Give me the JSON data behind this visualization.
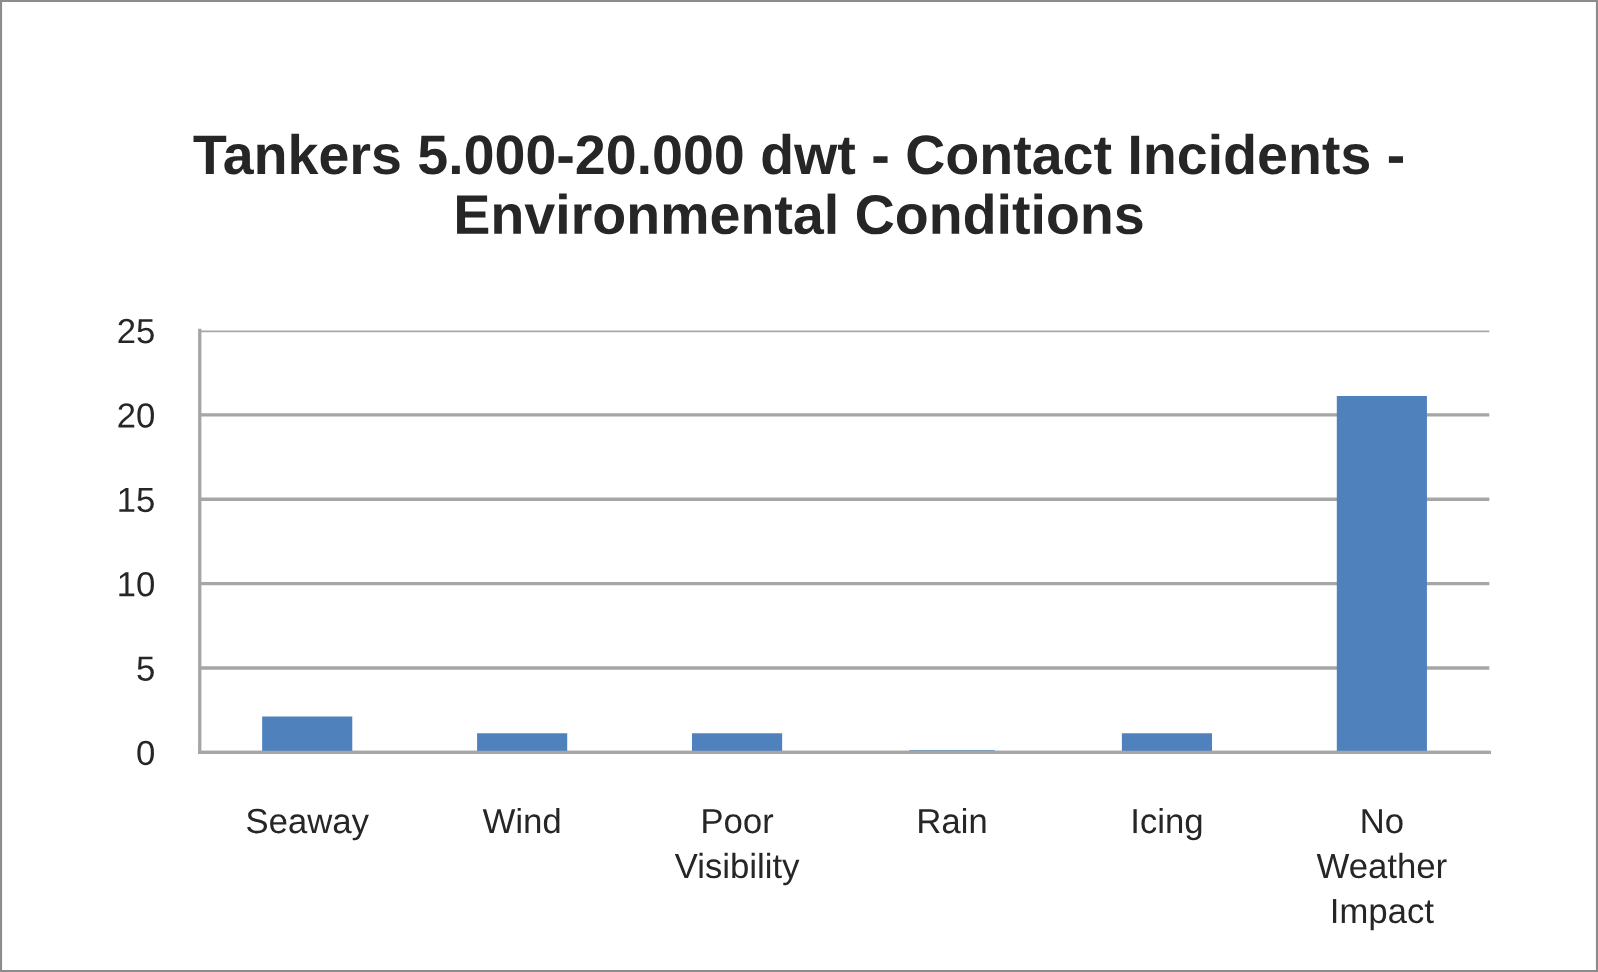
{
  "chart_data": {
    "type": "bar",
    "title": "Tankers 5.000-20.000 dwt - Contact Incidents -\nEnvironmental Conditions",
    "categories": [
      "Seaway",
      "Wind",
      "Poor Visibility",
      "Rain",
      "Icing",
      "No Weather Impact"
    ],
    "values": [
      2,
      1,
      1,
      0,
      1,
      21
    ],
    "color": "#4f81bd",
    "ylim": [
      0,
      25
    ],
    "yticks": [
      0,
      5,
      10,
      15,
      20,
      25
    ],
    "grid": "y"
  }
}
